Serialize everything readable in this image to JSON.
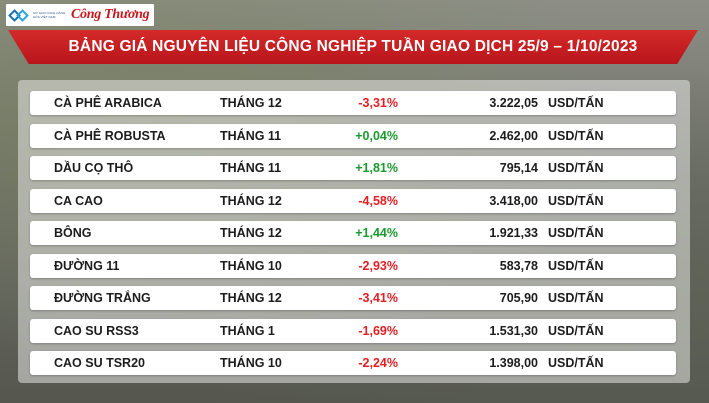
{
  "header": {
    "logo_small_text": "SỞ GIAO DỊCH HÀNG HÓA VIỆT NAM",
    "logo_brand": "Công Thương",
    "title": "BẢNG GIÁ NGUYÊN LIỆU CÔNG NGHIỆP TUẦN GIAO DỊCH 25/9 – 1/10/2023"
  },
  "colors": {
    "banner_red": "#c8161d",
    "negative": "#e31e24",
    "positive": "#1a9a2c"
  },
  "rows": [
    {
      "name": "CÀ PHÊ ARABICA",
      "month": "THÁNG 12",
      "change": "-3,31%",
      "trend": "neg",
      "price": "3.222,05",
      "unit": "USD/TẤN"
    },
    {
      "name": "CÀ PHÊ ROBUSTA",
      "month": "THÁNG 11",
      "change": "+0,04%",
      "trend": "pos",
      "price": "2.462,00",
      "unit": "USD/TẤN"
    },
    {
      "name": "DẦU CỌ THÔ",
      "month": "THÁNG 11",
      "change": "+1,81%",
      "trend": "pos",
      "price": "795,14",
      "unit": "USD/TẤN"
    },
    {
      "name": "CA CAO",
      "month": "THÁNG 12",
      "change": "-4,58%",
      "trend": "neg",
      "price": "3.418,00",
      "unit": "USD/TẤN"
    },
    {
      "name": "BÔNG",
      "month": "THÁNG 12",
      "change": "+1,44%",
      "trend": "pos",
      "price": "1.921,33",
      "unit": "USD/TẤN"
    },
    {
      "name": "ĐƯỜNG 11",
      "month": "THÁNG 10",
      "change": "-2,93%",
      "trend": "neg",
      "price": "583,78",
      "unit": "USD/TẤN"
    },
    {
      "name": "ĐƯỜNG TRẮNG",
      "month": "THÁNG 12",
      "change": "-3,41%",
      "trend": "neg",
      "price": "705,90",
      "unit": "USD/TẤN"
    },
    {
      "name": "CAO SU RSS3",
      "month": "THÁNG 1",
      "change": "-1,69%",
      "trend": "neg",
      "price": "1.531,30",
      "unit": "USD/TẤN"
    },
    {
      "name": "CAO SU TSR20",
      "month": "THÁNG 10",
      "change": "-2,24%",
      "trend": "neg",
      "price": "1.398,00",
      "unit": "USD/TẤN"
    }
  ]
}
